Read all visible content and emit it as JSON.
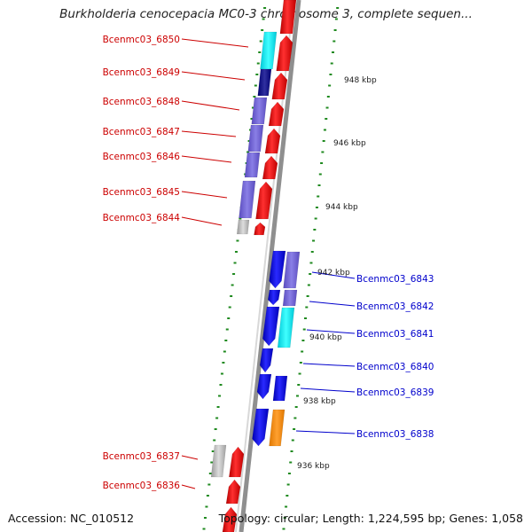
{
  "title": "Burkholderia cenocepacia MC0-3 chromosome 3, complete sequen...",
  "footer": {
    "accession": "Accession: NC_010512",
    "stats": "Topology: circular; Length: 1,224,595 bp; Genes: 1,058"
  },
  "colors": {
    "forward": "#ff0000",
    "reverse": "#0000ff",
    "left_label": "#cc0000",
    "right_label": "#0000cc",
    "tick": "#1f8a1f",
    "backbone": "#999999"
  },
  "scale_labels": [
    "948 kbp",
    "946 kbp",
    "944 kbp",
    "942 kbp",
    "940 kbp",
    "938 kbp",
    "936 kbp"
  ],
  "left_genes": [
    "Bcenmc03_6850",
    "Bcenmc03_6849",
    "Bcenmc03_6848",
    "Bcenmc03_6847",
    "Bcenmc03_6846",
    "Bcenmc03_6845",
    "Bcenmc03_6844",
    "Bcenmc03_6837",
    "Bcenmc03_6836"
  ],
  "right_genes": [
    "Bcenmc03_6843",
    "Bcenmc03_6842",
    "Bcenmc03_6841",
    "Bcenmc03_6840",
    "Bcenmc03_6839",
    "Bcenmc03_6838"
  ]
}
